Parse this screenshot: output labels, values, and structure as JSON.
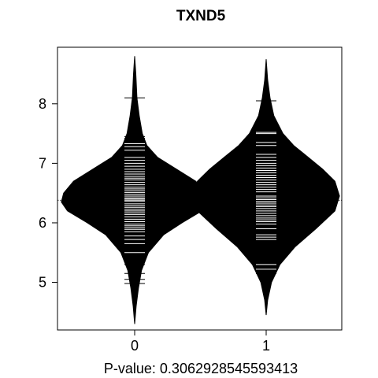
{
  "chart_data": {
    "type": "beanplot",
    "title": "TXND5",
    "xlabel": "P-value: 0.3062928545593413",
    "ylabel": "",
    "categories": [
      "0",
      "1"
    ],
    "yticks": [
      5,
      6,
      7,
      8
    ],
    "ylim": [
      4.2,
      8.95
    ],
    "overall_mean": 6.38,
    "grid": false,
    "legend": "none",
    "colors": {
      "bean_fill": "#000000",
      "observation_line": "#ffffff",
      "axis": "#000000"
    },
    "groups": [
      {
        "category": "0",
        "mean": 6.34,
        "min": 4.3,
        "max": 8.8,
        "density": [
          [
            4.3,
            0.0
          ],
          [
            4.6,
            0.02
          ],
          [
            4.9,
            0.05
          ],
          [
            5.2,
            0.09
          ],
          [
            5.5,
            0.18
          ],
          [
            5.8,
            0.38
          ],
          [
            6.0,
            0.62
          ],
          [
            6.2,
            0.88
          ],
          [
            6.35,
            0.96
          ],
          [
            6.5,
            0.93
          ],
          [
            6.7,
            0.8
          ],
          [
            6.9,
            0.55
          ],
          [
            7.1,
            0.3
          ],
          [
            7.3,
            0.16
          ],
          [
            7.5,
            0.1
          ],
          [
            7.8,
            0.06
          ],
          [
            8.1,
            0.03
          ],
          [
            8.5,
            0.015
          ],
          [
            8.8,
            0.0
          ]
        ],
        "observations": [
          8.1,
          7.45,
          7.42,
          7.38,
          7.33,
          7.28,
          7.22,
          7.1,
          7.05,
          7.0,
          6.95,
          6.9,
          6.86,
          6.82,
          6.78,
          6.75,
          6.72,
          6.68,
          6.64,
          6.6,
          6.57,
          6.54,
          6.51,
          6.48,
          6.45,
          6.42,
          6.4,
          6.38,
          6.36,
          6.32,
          6.29,
          6.26,
          6.23,
          6.2,
          6.17,
          6.14,
          6.1,
          6.06,
          6.02,
          5.98,
          5.95,
          5.92,
          5.89,
          5.85,
          5.78,
          5.72,
          5.65,
          5.5,
          5.3,
          5.15,
          5.05,
          4.98
        ]
      },
      {
        "category": "1",
        "mean": 6.48,
        "min": 4.45,
        "max": 8.75,
        "density": [
          [
            4.45,
            0.0
          ],
          [
            4.7,
            0.02
          ],
          [
            5.0,
            0.07
          ],
          [
            5.3,
            0.18
          ],
          [
            5.6,
            0.38
          ],
          [
            5.9,
            0.65
          ],
          [
            6.2,
            0.9
          ],
          [
            6.45,
            0.96
          ],
          [
            6.7,
            0.9
          ],
          [
            6.9,
            0.74
          ],
          [
            7.1,
            0.55
          ],
          [
            7.3,
            0.36
          ],
          [
            7.5,
            0.22
          ],
          [
            7.8,
            0.1
          ],
          [
            8.1,
            0.05
          ],
          [
            8.4,
            0.02
          ],
          [
            8.75,
            0.0
          ]
        ],
        "observations": [
          8.05,
          7.52,
          7.5,
          7.35,
          7.3,
          7.15,
          7.1,
          7.05,
          7.0,
          6.96,
          6.92,
          6.88,
          6.84,
          6.8,
          6.76,
          6.72,
          6.68,
          6.64,
          6.6,
          6.56,
          6.52,
          6.48,
          6.45,
          6.42,
          6.39,
          6.36,
          6.33,
          6.3,
          6.27,
          6.24,
          6.2,
          6.16,
          6.12,
          6.08,
          6.05,
          6.02,
          5.98,
          5.9,
          5.8,
          5.76,
          5.72,
          5.3,
          5.22,
          5.15
        ]
      }
    ]
  }
}
